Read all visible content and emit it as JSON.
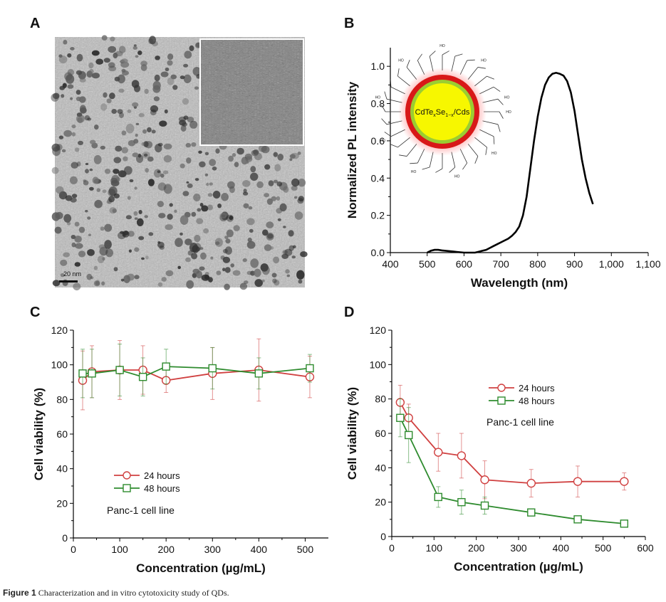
{
  "panels": {
    "a": "A",
    "b": "B",
    "c": "C",
    "d": "D"
  },
  "caption": {
    "label": "Figure 1",
    "text": "Characterization and in vitro cytotoxicity study of QDs."
  },
  "tem": {
    "scale_bar_label": "20 nm"
  },
  "schematic": {
    "core_label_main": "CdTe",
    "sub1": "x",
    "mid": "Se",
    "sub2": "1−x",
    "end": "/Cds",
    "ligand_text": "HO",
    "colors": {
      "core": "#f7f700",
      "shell_inner": "#9acd32",
      "shell_outer": "#d81818"
    }
  },
  "chart_data": [
    {
      "id": "B",
      "type": "line",
      "xlabel": "Wavelength (nm)",
      "ylabel": "Normalized PL intensity",
      "xlim": [
        400,
        1100
      ],
      "ylim": [
        0,
        1.1
      ],
      "xticks": [
        400,
        500,
        600,
        700,
        800,
        900,
        1000,
        1100
      ],
      "xtick_labels": [
        "400",
        "500",
        "600",
        "700",
        "800",
        "900",
        "1,000",
        "1,100"
      ],
      "yticks": [
        0,
        0.2,
        0.4,
        0.6,
        0.8,
        1.0
      ],
      "ytick_labels": [
        "0.0",
        "0.2",
        "0.4",
        "0.6",
        "0.8",
        "1.0"
      ],
      "series": [
        {
          "color": "#000000",
          "x": [
            500,
            510,
            520,
            530,
            540,
            550,
            560,
            570,
            580,
            590,
            600,
            610,
            620,
            630,
            640,
            650,
            660,
            670,
            680,
            690,
            700,
            710,
            720,
            730,
            740,
            750,
            760,
            770,
            780,
            790,
            800,
            810,
            820,
            830,
            840,
            850,
            860,
            870,
            880,
            890,
            900,
            910,
            920,
            930,
            940,
            950
          ],
          "y": [
            0.0,
            0.01,
            0.015,
            0.015,
            0.012,
            0.01,
            0.008,
            0.006,
            0.004,
            0.002,
            0.0,
            0.0,
            0.0,
            0.0,
            0.005,
            0.01,
            0.015,
            0.025,
            0.035,
            0.045,
            0.055,
            0.065,
            0.075,
            0.09,
            0.11,
            0.14,
            0.2,
            0.3,
            0.45,
            0.6,
            0.73,
            0.83,
            0.9,
            0.94,
            0.96,
            0.965,
            0.96,
            0.95,
            0.92,
            0.86,
            0.76,
            0.63,
            0.5,
            0.4,
            0.32,
            0.26
          ]
        }
      ]
    },
    {
      "id": "C",
      "type": "line",
      "xlabel": "Concentration (µg/mL)",
      "ylabel": "Cell viability (%)",
      "xlim": [
        0,
        550
      ],
      "ylim": [
        0,
        120
      ],
      "xticks": [
        0,
        100,
        200,
        300,
        400,
        500
      ],
      "yticks": [
        0,
        20,
        40,
        60,
        80,
        100,
        120
      ],
      "legend_note": "Panc-1 cell line",
      "series": [
        {
          "name": "24 hours",
          "color": "#d04040",
          "marker": "circle",
          "x": [
            20,
            40,
            100,
            150,
            200,
            300,
            400,
            510
          ],
          "y": [
            91,
            96,
            97,
            97,
            91,
            95,
            97,
            93
          ],
          "err": [
            17,
            15,
            17,
            14,
            7,
            15,
            18,
            12
          ]
        },
        {
          "name": "48 hours",
          "color": "#2e8b2e",
          "marker": "square",
          "x": [
            20,
            40,
            100,
            150,
            200,
            300,
            400,
            510
          ],
          "y": [
            95,
            95,
            97,
            93,
            99,
            98,
            95,
            98
          ],
          "err": [
            14,
            14,
            15,
            11,
            10,
            12,
            9,
            8
          ]
        }
      ]
    },
    {
      "id": "D",
      "type": "line",
      "xlabel": "Concentration (µg/mL)",
      "ylabel": "Cell viability (%)",
      "xlim": [
        0,
        600
      ],
      "ylim": [
        0,
        120
      ],
      "xticks": [
        0,
        100,
        200,
        300,
        400,
        500,
        600
      ],
      "yticks": [
        0,
        20,
        40,
        60,
        80,
        100,
        120
      ],
      "legend_note": "Panc-1 cell line",
      "series": [
        {
          "name": "24 hours",
          "color": "#d04040",
          "marker": "circle",
          "x": [
            20,
            40,
            110,
            165,
            220,
            330,
            440,
            550
          ],
          "y": [
            78,
            69,
            49,
            47,
            33,
            31,
            32,
            32
          ],
          "err": [
            10,
            8,
            11,
            13,
            11,
            8,
            9,
            5
          ]
        },
        {
          "name": "48 hours",
          "color": "#2e8b2e",
          "marker": "square",
          "x": [
            20,
            40,
            110,
            165,
            220,
            330,
            440,
            550
          ],
          "y": [
            69,
            59,
            23,
            20,
            18,
            14,
            10,
            7.5
          ],
          "err": [
            11,
            16,
            6,
            7,
            5,
            2,
            2,
            2
          ]
        }
      ]
    }
  ]
}
